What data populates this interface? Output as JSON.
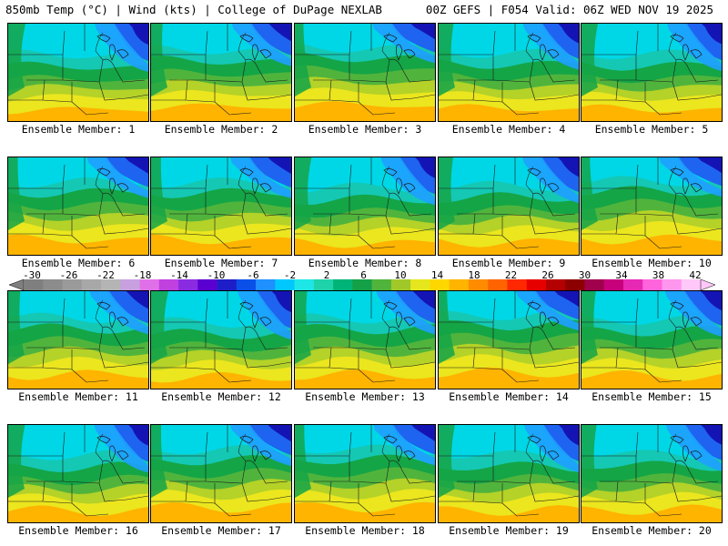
{
  "header": {
    "left": "850mb Temp (°C) | Wind (kts) | College of DuPage NEXLAB",
    "right": "00Z GEFS | F054 Valid: 06Z WED NOV 19 2025"
  },
  "member_prefix": "Ensemble Member: ",
  "members": [
    "1",
    "2",
    "3",
    "4",
    "5",
    "6",
    "7",
    "8",
    "9",
    "10",
    "11",
    "12",
    "13",
    "14",
    "15",
    "16",
    "17",
    "18",
    "19",
    "20"
  ],
  "colorbar": {
    "labels": [
      "-30",
      "-26",
      "-22",
      "-18",
      "-14",
      "-10",
      "-6",
      "-2",
      "2",
      "6",
      "10",
      "14",
      "18",
      "22",
      "26",
      "30",
      "34",
      "38",
      "42"
    ],
    "colors": [
      "#7f7f7f",
      "#8c8c8c",
      "#9a9a9a",
      "#a8a8a8",
      "#b4b4b4",
      "#c8a0e0",
      "#e070e8",
      "#c040e0",
      "#8a2be2",
      "#5a00d0",
      "#1e1ec8",
      "#0a50e8",
      "#1e90ff",
      "#00c8ff",
      "#1ee6e6",
      "#1ed2aa",
      "#00b478",
      "#14a046",
      "#50b43c",
      "#a0c828",
      "#e6e61e",
      "#ffd700",
      "#ffb400",
      "#ff8c00",
      "#ff6400",
      "#ff2800",
      "#e60000",
      "#b40000",
      "#8c0000",
      "#a0004c",
      "#c8007c",
      "#e628b4",
      "#ff64dc",
      "#ff96ee",
      "#ffc8f8"
    ]
  },
  "field_colors": {
    "deep_blue": "#1414b4",
    "blue": "#1e64f0",
    "light_blue": "#1ea0ff",
    "cyan": "#00d7e6",
    "teal": "#14c8b4",
    "green": "#14a546",
    "light_green": "#50b43c",
    "yellow_green": "#b4d228",
    "yellow": "#ebe61e",
    "orange": "#ffb400"
  }
}
